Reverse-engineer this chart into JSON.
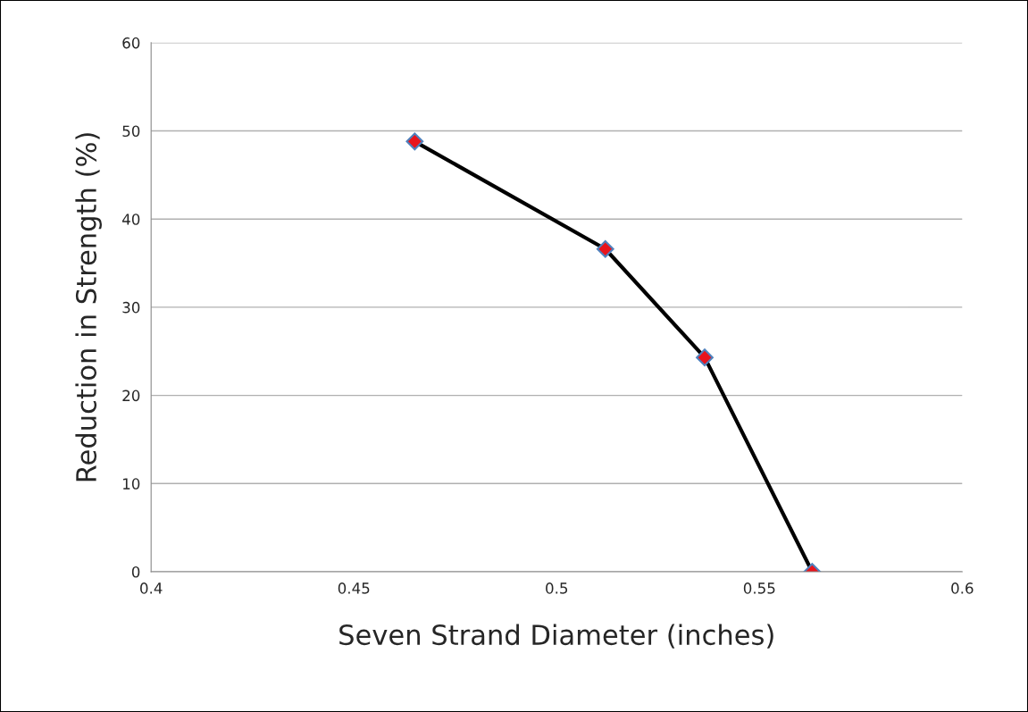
{
  "chart_data": {
    "type": "line",
    "xlabel": "Seven Strand Diameter (inches)",
    "ylabel": "Reduction in Strength (%)",
    "x": [
      0.465,
      0.512,
      0.5365,
      0.563
    ],
    "series": [
      {
        "color": "#000000",
        "values": [
          48.8,
          36.6,
          24.3,
          0
        ]
      }
    ],
    "xlim": [
      0.4,
      0.6
    ],
    "xticks": [
      0.4,
      0.45,
      0.5,
      0.55,
      0.6
    ],
    "ylim": [
      0,
      60
    ],
    "yticks": [
      0,
      10,
      20,
      30,
      40,
      50,
      60
    ],
    "grid": "y",
    "marker": "diamond",
    "line_style": "solid"
  }
}
